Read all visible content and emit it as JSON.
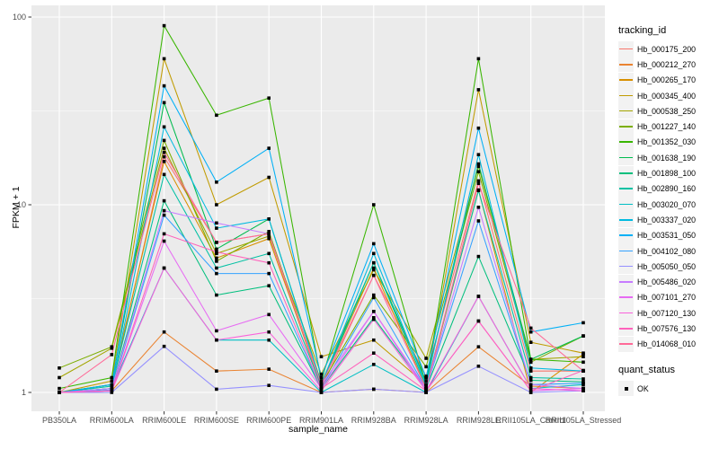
{
  "figure": {
    "ylabel": "FPKM + 1",
    "xlabel": "sample_name",
    "panel_bg": "#EBEBEB",
    "grid_color": "#FFFFFF",
    "tick_text_color": "#4D4D4D",
    "tick_mark_color": "#333333",
    "point_color": "#000000"
  },
  "legend": {
    "color_title": "tracking_id",
    "shape_title": "quant_status",
    "shape_items": [
      {
        "label": "OK"
      }
    ],
    "key_bg": "#F2F2F2"
  },
  "chart_data": {
    "type": "line",
    "x_type": "categorical",
    "yscale": "log10",
    "ylim": [
      1,
      100
    ],
    "yticks": [
      1,
      10,
      100
    ],
    "minor_yticks": [
      3.1623,
      31.623
    ],
    "grid": true,
    "legend_position": "right",
    "title": "",
    "xlabel": "sample_name",
    "ylabel": "FPKM + 1",
    "categories": [
      "PB350LA",
      "RRIM600LA",
      "RRIM600LE",
      "RRIM600SE",
      "RRIM600PE",
      "RRIM901LA",
      "RRIM928BA",
      "RRIM928LA",
      "RRIM928LE",
      "RRII105LA_Control",
      "RRII105LA_Stressed"
    ],
    "series": [
      {
        "name": "Hb_000175_200",
        "color": "#F8766D",
        "values": [
          1.0,
          1.05,
          18.0,
          6.3,
          7.0,
          1.05,
          4.2,
          1.22,
          13.4,
          1.3,
          1.3
        ]
      },
      {
        "name": "Hb_000212_270",
        "color": "#EA8331",
        "values": [
          1.0,
          1.02,
          2.1,
          1.3,
          1.33,
          1.0,
          1.04,
          1.0,
          1.75,
          1.08,
          1.05
        ]
      },
      {
        "name": "Hb_000265_170",
        "color": "#D89000",
        "values": [
          1.0,
          1.1,
          17.0,
          5.2,
          6.6,
          1.1,
          4.6,
          1.05,
          12.0,
          1.0,
          1.6
        ]
      },
      {
        "name": "Hb_000345_400",
        "color": "#C09B00",
        "values": [
          1.0,
          1.15,
          60.0,
          10.0,
          14.0,
          1.55,
          1.9,
          1.1,
          41.0,
          1.85,
          1.62
        ]
      },
      {
        "name": "Hb_000538_250",
        "color": "#A3A500",
        "values": [
          1.2,
          1.72,
          20.0,
          5.5,
          6.8,
          1.25,
          4.5,
          1.52,
          16.0,
          1.5,
          1.55
        ]
      },
      {
        "name": "Hb_001227_140",
        "color": "#7CAE00",
        "values": [
          1.35,
          1.75,
          22.0,
          5.0,
          7.2,
          1.1,
          3.3,
          1.37,
          15.0,
          1.45,
          2.0
        ]
      },
      {
        "name": "Hb_001352_030",
        "color": "#39B600",
        "values": [
          1.05,
          1.2,
          90.0,
          30.0,
          37.0,
          1.15,
          10.0,
          1.1,
          60.0,
          1.5,
          1.45
        ]
      },
      {
        "name": "Hb_001638_190",
        "color": "#00BB4E",
        "values": [
          1.0,
          1.1,
          35.0,
          5.8,
          8.4,
          1.12,
          4.9,
          1.15,
          16.5,
          1.5,
          2.0
        ]
      },
      {
        "name": "Hb_001898_100",
        "color": "#00BF7D",
        "values": [
          1.0,
          1.05,
          10.5,
          3.3,
          3.7,
          1.05,
          2.5,
          1.05,
          5.3,
          1.16,
          1.14
        ]
      },
      {
        "name": "Hb_002890_160",
        "color": "#00C1A3",
        "values": [
          1.0,
          1.08,
          14.5,
          4.6,
          5.5,
          1.08,
          4.9,
          1.08,
          11.9,
          1.2,
          1.18
        ]
      },
      {
        "name": "Hb_003020_070",
        "color": "#00BFC4",
        "values": [
          1.0,
          1.05,
          4.6,
          1.9,
          1.9,
          1.0,
          1.41,
          1.0,
          3.25,
          1.05,
          1.1
        ]
      },
      {
        "name": "Hb_003337_020",
        "color": "#00BAE0",
        "values": [
          1.0,
          1.05,
          26.0,
          7.5,
          8.4,
          1.1,
          5.5,
          1.1,
          18.5,
          1.35,
          1.3
        ]
      },
      {
        "name": "Hb_003531_050",
        "color": "#00B0F6",
        "values": [
          1.0,
          1.1,
          43.0,
          13.2,
          20.0,
          1.2,
          6.2,
          1.2,
          25.6,
          2.1,
          2.35
        ]
      },
      {
        "name": "Hb_004102_080",
        "color": "#35A2FF",
        "values": [
          1.0,
          1.03,
          8.8,
          4.3,
          4.3,
          1.05,
          3.2,
          1.05,
          8.2,
          1.1,
          1.12
        ]
      },
      {
        "name": "Hb_005050_050",
        "color": "#9590FF",
        "values": [
          1.0,
          1.0,
          1.76,
          1.04,
          1.09,
          1.0,
          1.04,
          1.0,
          1.38,
          1.0,
          1.02
        ]
      },
      {
        "name": "Hb_005486_020",
        "color": "#C77CFF",
        "values": [
          1.0,
          1.05,
          9.3,
          8.0,
          7.0,
          1.1,
          2.7,
          1.05,
          9.7,
          1.1,
          1.05
        ]
      },
      {
        "name": "Hb_007101_270",
        "color": "#E76BF3",
        "values": [
          1.0,
          1.02,
          6.4,
          2.13,
          2.6,
          1.05,
          2.7,
          1.02,
          2.4,
          1.02,
          1.05
        ]
      },
      {
        "name": "Hb_007120_130",
        "color": "#FA62DB",
        "values": [
          1.0,
          1.02,
          4.6,
          1.9,
          2.1,
          1.02,
          2.45,
          1.02,
          3.25,
          1.05,
          1.02
        ]
      },
      {
        "name": "Hb_007576_130",
        "color": "#FF62BC",
        "values": [
          1.0,
          1.02,
          7.0,
          5.6,
          4.9,
          1.05,
          1.62,
          1.02,
          2.4,
          1.02,
          1.31
        ]
      },
      {
        "name": "Hb_014068_010",
        "color": "#FF6A98",
        "values": [
          1.0,
          1.59,
          19.0,
          6.3,
          7.0,
          1.1,
          4.2,
          1.05,
          13.0,
          2.2,
          1.3
        ]
      }
    ]
  }
}
